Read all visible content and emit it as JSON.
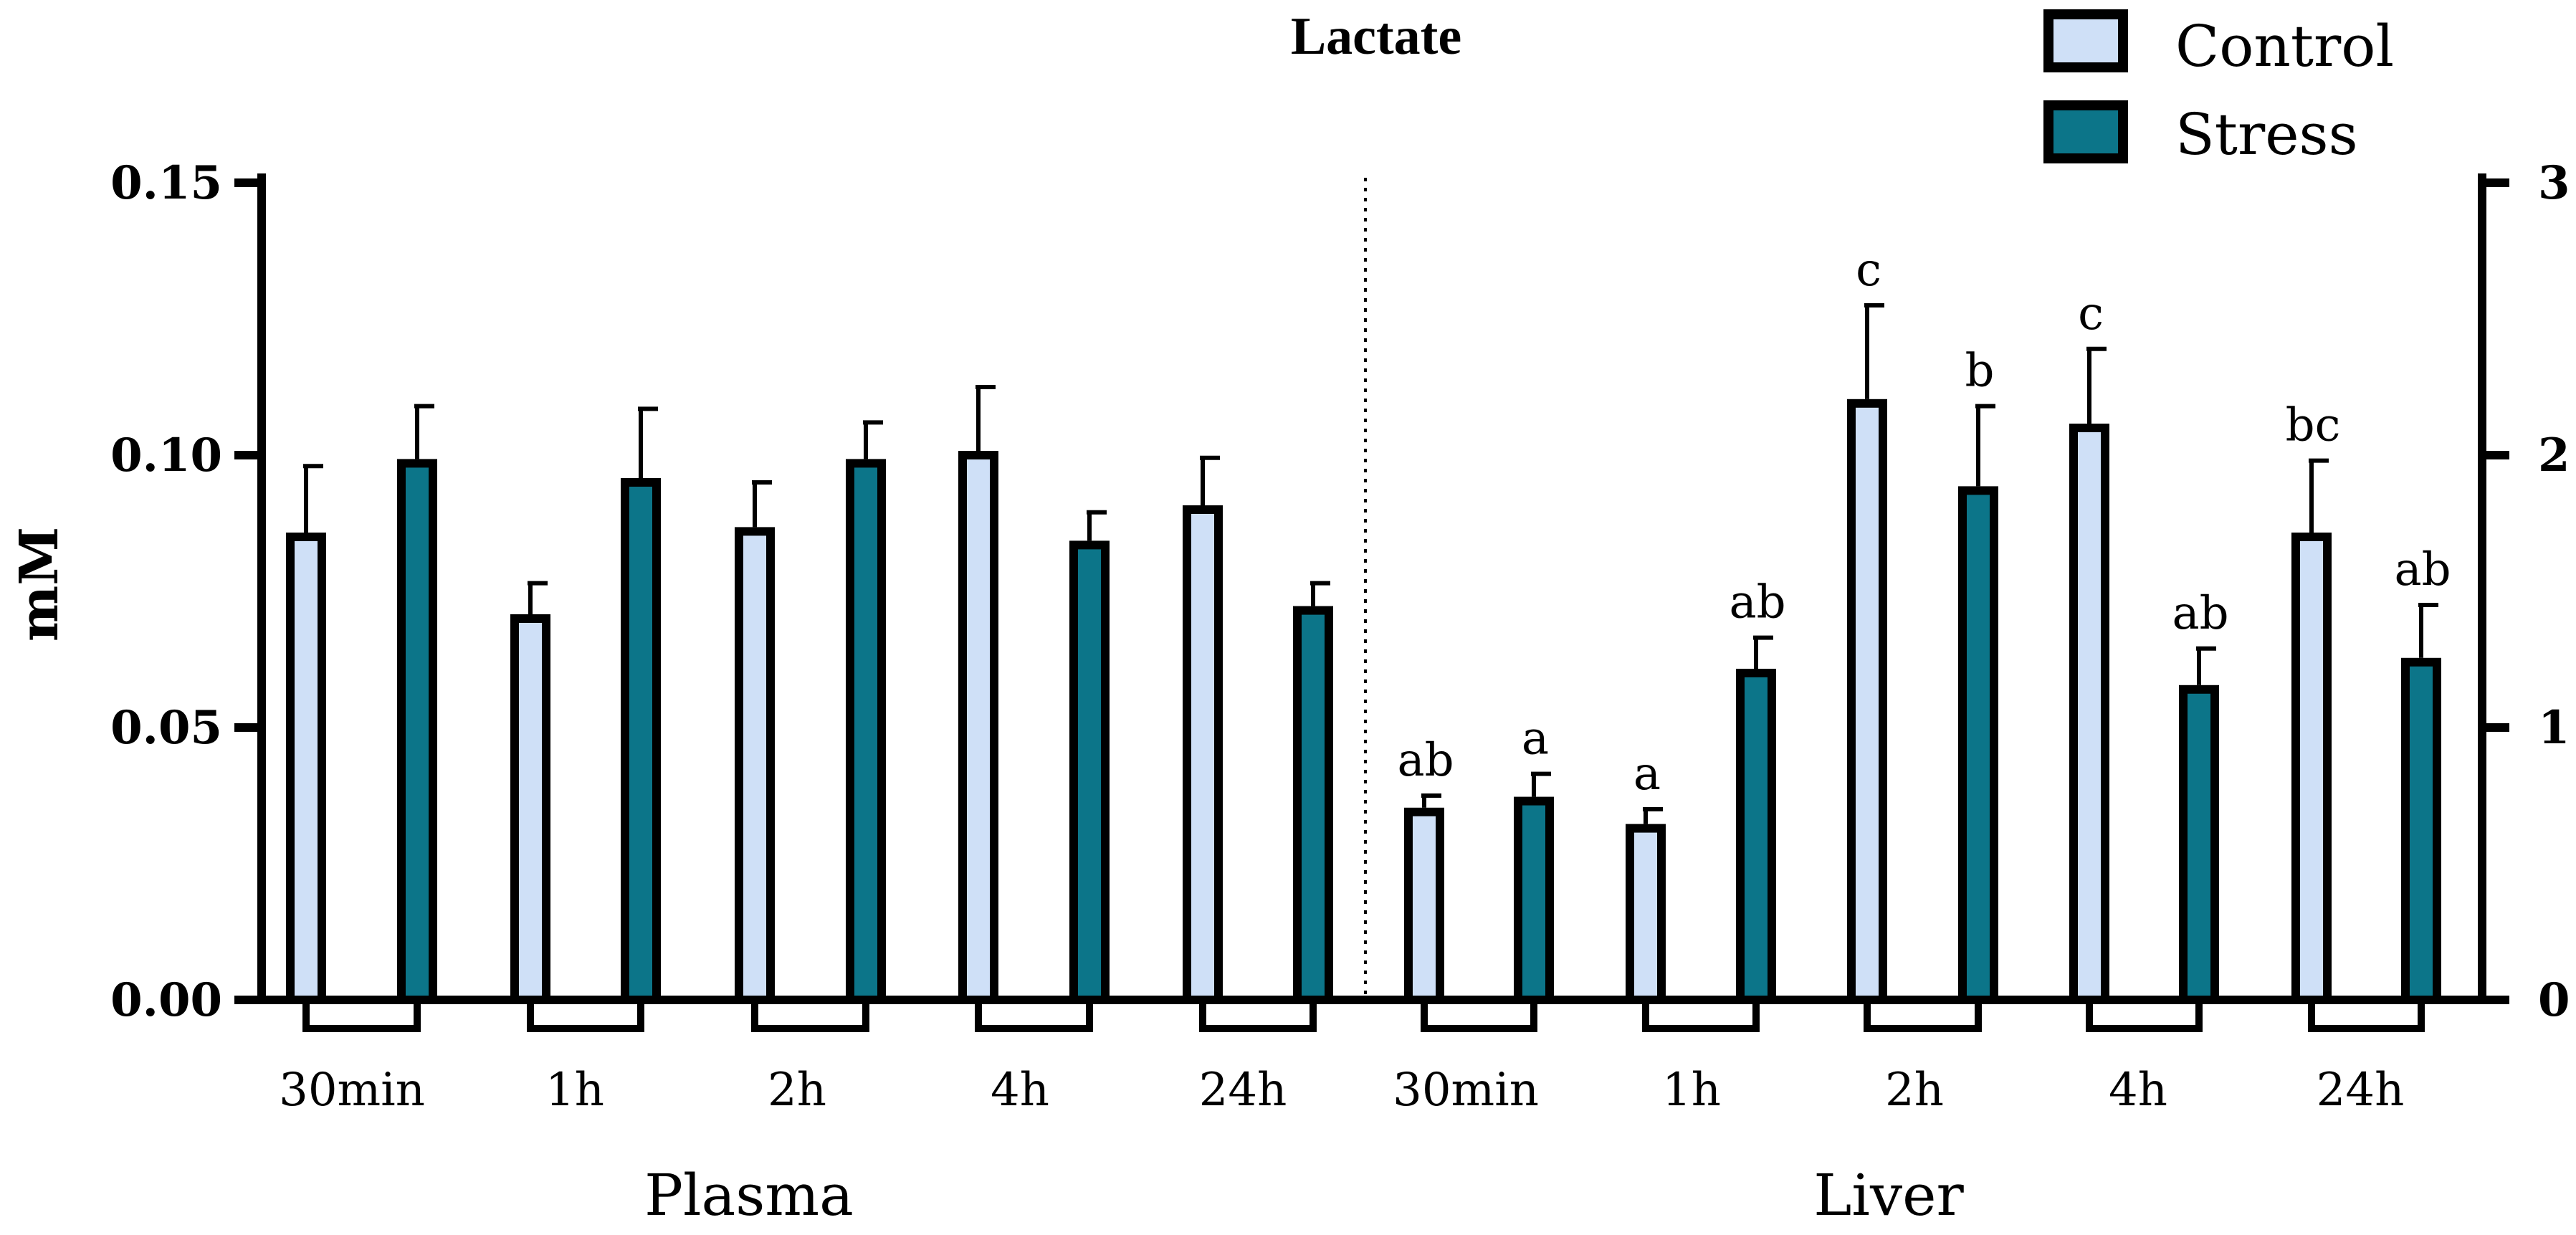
{
  "chart_data": {
    "type": "bar",
    "title": "Lactate",
    "ylabel": "mM",
    "left_axis": {
      "ylim": [
        0,
        0.15
      ],
      "ticks": [
        0,
        0.05,
        0.1,
        0.15
      ],
      "tick_labels": [
        "0.00",
        "0.05",
        "0.10",
        "0.15"
      ]
    },
    "right_axis": {
      "ylim": [
        0,
        3
      ],
      "ticks": [
        0,
        1,
        2,
        3
      ],
      "tick_labels": [
        "0",
        "1",
        "2",
        "3"
      ]
    },
    "groups": [
      "Plasma",
      "Liver"
    ],
    "legend": [
      {
        "name": "Control",
        "color": "#cfe0f7"
      },
      {
        "name": "Stress",
        "color": "#0c7589"
      }
    ],
    "categories": [
      "30min",
      "1h",
      "2h",
      "4h",
      "24h",
      "30min",
      "1h",
      "2h",
      "4h",
      "24h"
    ],
    "series": [
      {
        "name": "Control",
        "color": "#cfe0f7",
        "plasma_values": [
          0.085,
          0.07,
          0.086,
          0.1,
          0.09
        ],
        "plasma_errors": [
          0.013,
          0.0065,
          0.009,
          0.0125,
          0.0095
        ],
        "liver_values": [
          0.69,
          0.63,
          2.19,
          2.1,
          1.7
        ],
        "liver_errors": [
          0.06,
          0.07,
          0.36,
          0.29,
          0.28
        ],
        "liver_sig": [
          "ab",
          "a",
          "c",
          "c",
          "bc"
        ]
      },
      {
        "name": "Stress",
        "color": "#0c7589",
        "plasma_values": [
          0.0985,
          0.095,
          0.0985,
          0.0835,
          0.0715
        ],
        "plasma_errors": [
          0.0105,
          0.0135,
          0.0075,
          0.006,
          0.005
        ],
        "liver_values": [
          0.73,
          1.2,
          1.87,
          1.14,
          1.24
        ],
        "liver_errors": [
          0.1,
          0.13,
          0.31,
          0.15,
          0.21
        ],
        "liver_sig": [
          "a",
          "ab",
          "b",
          "ab",
          "ab"
        ]
      }
    ]
  }
}
